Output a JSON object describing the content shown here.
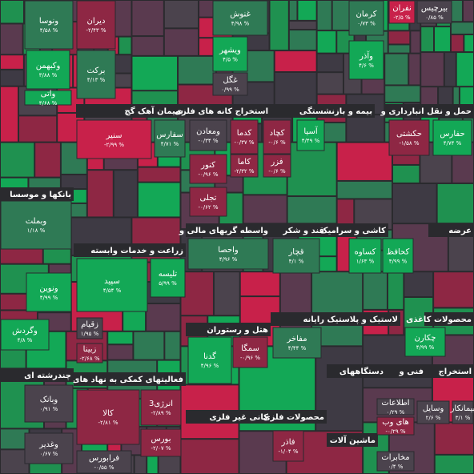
{
  "sectors": [
    {
      "label": "سیمان آهک گچ"
    },
    {
      "label": "استخراج کانه های فلزی"
    },
    {
      "label": "بیمه و بازنشستگی"
    },
    {
      "label": "حمل و نقل انبارداری و"
    },
    {
      "label": "بانکها و موسسا"
    },
    {
      "label": "واسطه گریهای مالی و"
    },
    {
      "label": "قند و شکر"
    },
    {
      "label": "کاشی و سرامیک"
    },
    {
      "label": "عرضه"
    },
    {
      "label": "زراعت و خدمات وابسته"
    },
    {
      "label": "هتل و رستوران"
    },
    {
      "label": "رایانه"
    },
    {
      "label": "لاستیک و پلاستیک"
    },
    {
      "label": "محصولات کاغذی"
    },
    {
      "label": "فعالیتهای کمکی به نهاد های"
    },
    {
      "label": "چندرشته ای"
    },
    {
      "label": "فنی و"
    },
    {
      "label": "استخراج"
    },
    {
      "label": "دستگاههای"
    },
    {
      "label": "کانی غیر فلزی"
    },
    {
      "label": "محصولات فلزی"
    },
    {
      "label": "ماشین آلات"
    }
  ],
  "tiles": [
    {
      "name": "ونوسا",
      "change": "۴/۵۸ %"
    },
    {
      "name": "دیران",
      "change": "-۲/۴۳ %"
    },
    {
      "name": "وکبهمن",
      "change": "۳/۸۸ %"
    },
    {
      "name": "برکت",
      "change": "۴/۱۳ %"
    },
    {
      "name": "واتی",
      "change": "۴/۶۸ %"
    },
    {
      "name": "غنوش",
      "change": "۴/۹۸ %"
    },
    {
      "name": "ویشهر",
      "change": "۴/۵ %"
    },
    {
      "name": "غگل",
      "change": "۰/۹۹ %"
    },
    {
      "name": "کرمان",
      "change": "۰/۷۳ %"
    },
    {
      "name": "وآذر",
      "change": "۴/۶ %"
    },
    {
      "name": "نفران",
      "change": "-۲/۵ %"
    },
    {
      "name": "بیرچیس",
      "change": "۰/۸۵ %"
    },
    {
      "name": "سنیر",
      "change": "-۲/۹۹ %"
    },
    {
      "name": "سفارس",
      "change": "۴/۷۱ %"
    },
    {
      "name": "ومعادن",
      "change": "-۰/۳۴ %"
    },
    {
      "name": "کدما",
      "change": "-۰/۳۷ %"
    },
    {
      "name": "کچاد",
      "change": "-۰/۶ %"
    },
    {
      "name": "آسیا",
      "change": "۴/۴۹ %"
    },
    {
      "name": "حکشتی",
      "change": "-۱/۵۸ %"
    },
    {
      "name": "حفارس",
      "change": "۴/۷۴ %"
    },
    {
      "name": "کنور",
      "change": "-۰/۹۶ %"
    },
    {
      "name": "کاما",
      "change": "-۲/۳۲ %"
    },
    {
      "name": "فزر",
      "change": "-۰/۶ %"
    },
    {
      "name": "تجلی",
      "change": "-۰/۶۲ %"
    },
    {
      "name": "وبملت",
      "change": "۱/۱۸ %"
    },
    {
      "name": "واحصا",
      "change": "۴/۹۶ %"
    },
    {
      "name": "قچار",
      "change": "۴/۱ %"
    },
    {
      "name": "کساوه",
      "change": "۱/۶۳ %"
    },
    {
      "name": "کحافظ",
      "change": "۴/۹۹ %"
    },
    {
      "name": "سپید",
      "change": "۴/۵۴ %"
    },
    {
      "name": "تلیسه",
      "change": "۵/۹۹ %"
    },
    {
      "name": "ونوین",
      "change": "۴/۹۹ %"
    },
    {
      "name": "وگردش",
      "change": "۴/۸ %"
    },
    {
      "name": "زقیام",
      "change": "۱/۹۵ %"
    },
    {
      "name": "زبینا",
      "change": "-۲/۶۸ %"
    },
    {
      "name": "مفاخر",
      "change": "۴/۴۴ %"
    },
    {
      "name": "چکارن",
      "change": "۴/۹۹ %"
    },
    {
      "name": "سمگا",
      "change": "-۰/۹۶ %"
    },
    {
      "name": "گدنا",
      "change": "۴/۹۶ %"
    },
    {
      "name": "وبانک",
      "change": "۰/۹۱ %"
    },
    {
      "name": "کالا",
      "change": "-۲/۸۱ %"
    },
    {
      "name": "انرژی3",
      "change": "-۲/۸۹ %"
    },
    {
      "name": "بورس",
      "change": "-۲/۰۷ %"
    },
    {
      "name": "فرابورس",
      "change": "-۰/۵۵ %"
    },
    {
      "name": "وغدیر",
      "change": "۰/۶۷ %"
    },
    {
      "name": "فاذر",
      "change": "-۱/۰۴ %"
    },
    {
      "name": "اطلاعات",
      "change": "۰/۲۹ %"
    },
    {
      "name": "های وب",
      "change": "-۰/۲۹ %"
    },
    {
      "name": "وسایل",
      "change": "۲/۶ %"
    },
    {
      "name": "بیمانکار",
      "change": "۳/۱ %"
    },
    {
      "name": "مخابرات",
      "change": "۰/۴ %"
    }
  ]
}
